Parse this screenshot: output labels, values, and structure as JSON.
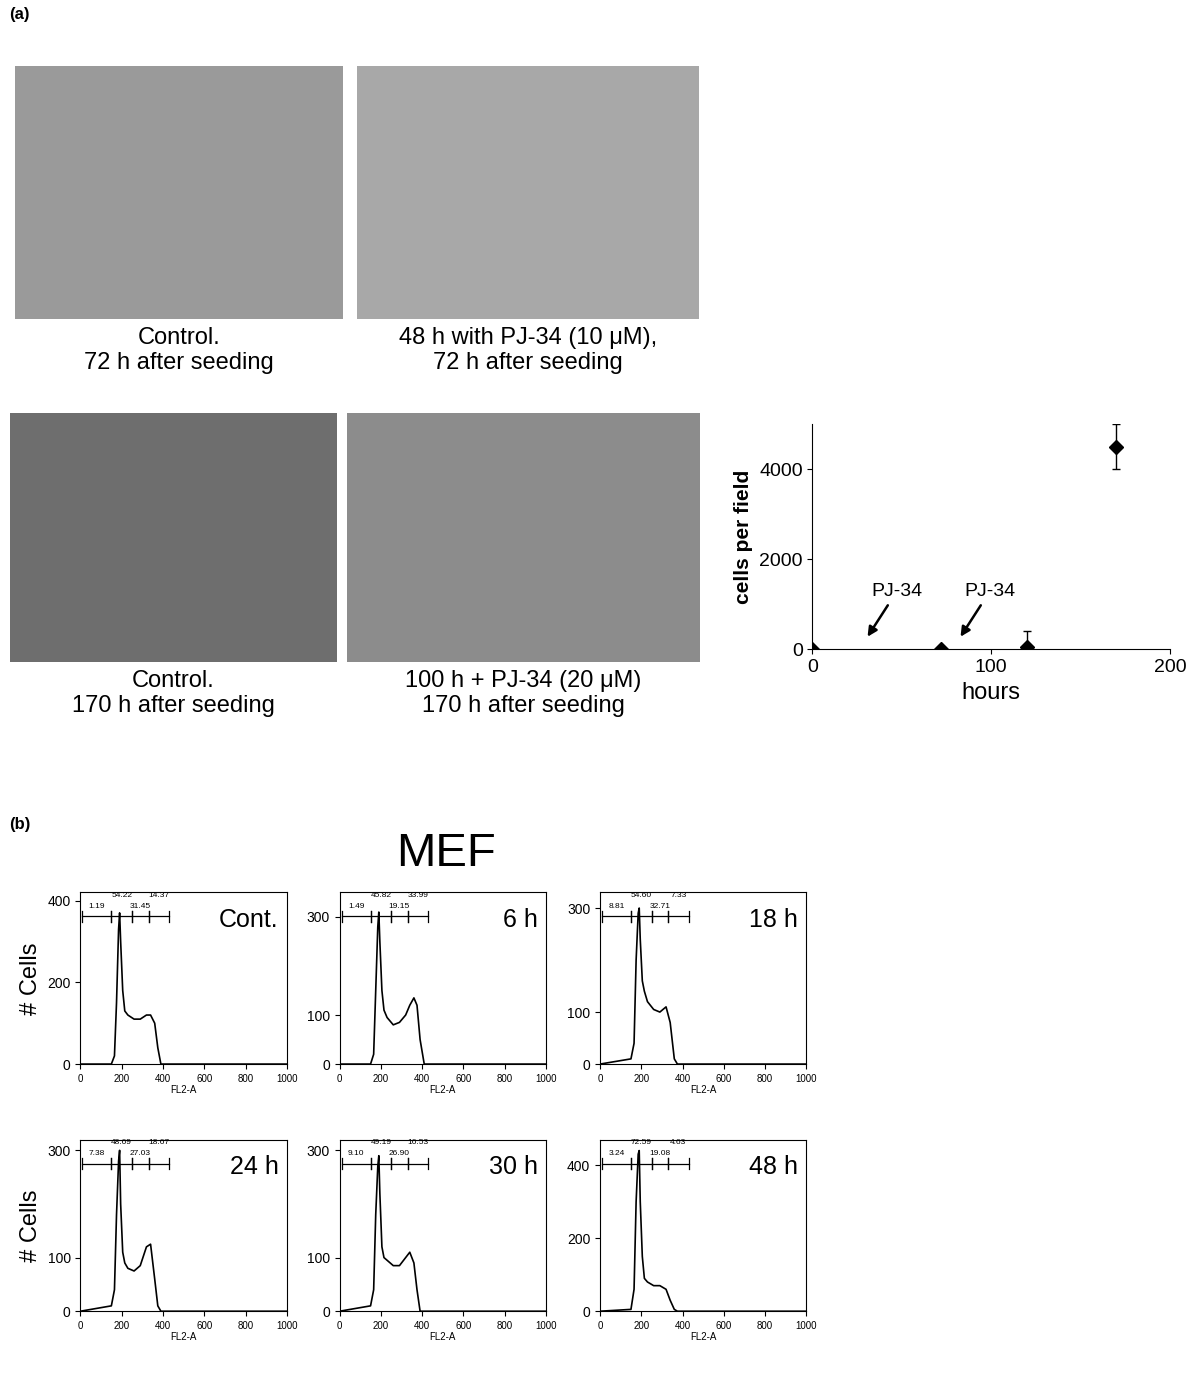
{
  "panel_labels": [
    "(a)",
    "(b)"
  ],
  "images": [
    {
      "caption": "Control.\n72 h after seeding"
    },
    {
      "caption": "48 h with PJ-34 (10 μM),\n72 h after seeding"
    },
    {
      "caption": "Control.\n170 h after seeding"
    },
    {
      "caption": "100 h + PJ-34 (20 μM)\n170 h after seeding"
    }
  ],
  "panel_b_title": "MEF",
  "chart_data": [
    {
      "type": "scatter",
      "x": [
        0,
        72,
        120,
        170
      ],
      "values": [
        0,
        0,
        50,
        4500
      ],
      "errors": [
        0,
        0,
        350,
        500
      ],
      "color": "black",
      "marker": "D",
      "xlim": [
        0,
        200
      ],
      "xticks": [
        0,
        100,
        200
      ],
      "ylim": [
        0,
        5000
      ],
      "yticks": [
        0,
        2000,
        4000
      ],
      "x_label": "hours",
      "y_label": "cells per field",
      "annotations": [
        {
          "text": "PJ-34",
          "x": 30,
          "y": 230
        },
        {
          "text": "PJ-34",
          "x": 82,
          "y": 230
        }
      ]
    },
    {
      "type": "line",
      "title": "Cont.",
      "color": "black",
      "x": [
        0,
        150,
        165,
        175,
        185,
        190,
        195,
        205,
        215,
        230,
        260,
        290,
        320,
        340,
        360,
        375,
        390,
        410,
        1000
      ],
      "values": [
        0,
        0,
        20,
        150,
        330,
        370,
        300,
        180,
        130,
        120,
        110,
        110,
        120,
        120,
        100,
        40,
        0,
        0,
        0
      ],
      "xlim": [
        0,
        1000
      ],
      "xticks": [
        0,
        200,
        400,
        600,
        800,
        1000
      ],
      "ylim": [
        0,
        420
      ],
      "yticks": [
        0,
        200,
        400
      ],
      "x_label": "FL2-A",
      "y_label": "# Cells",
      "gates": [
        {
          "range": [
            10,
            150
          ],
          "value": 1.19,
          "label": "1.19"
        },
        {
          "range": [
            150,
            250
          ],
          "value": 54.22,
          "label": "54.22"
        },
        {
          "range": [
            250,
            330
          ],
          "value": 31.45,
          "label": "31.45"
        },
        {
          "range": [
            330,
            430
          ],
          "value": 14.37,
          "label": "14.37"
        }
      ]
    },
    {
      "type": "line",
      "title": "6 h",
      "color": "black",
      "x": [
        0,
        150,
        165,
        175,
        185,
        190,
        195,
        205,
        215,
        230,
        260,
        290,
        320,
        340,
        360,
        375,
        390,
        410,
        1000
      ],
      "values": [
        0,
        0,
        20,
        150,
        280,
        310,
        250,
        150,
        110,
        95,
        80,
        85,
        100,
        120,
        135,
        120,
        50,
        0,
        0
      ],
      "xlim": [
        0,
        1000
      ],
      "xticks": [
        0,
        200,
        400,
        600,
        800,
        1000
      ],
      "ylim": [
        0,
        350
      ],
      "yticks": [
        0,
        100,
        300
      ],
      "x_label": "FL2-A",
      "gates": [
        {
          "range": [
            10,
            150
          ],
          "value": 1.49,
          "label": "1.49"
        },
        {
          "range": [
            150,
            250
          ],
          "value": 45.82,
          "label": "45.82"
        },
        {
          "range": [
            250,
            330
          ],
          "value": 19.15,
          "label": "19.15"
        },
        {
          "range": [
            330,
            430
          ],
          "value": 33.99,
          "label": "33.99"
        }
      ]
    },
    {
      "type": "line",
      "title": "18 h",
      "color": "black",
      "x": [
        0,
        150,
        165,
        175,
        185,
        190,
        195,
        205,
        215,
        230,
        260,
        290,
        320,
        340,
        360,
        375,
        390,
        410,
        1000
      ],
      "values": [
        0,
        10,
        40,
        200,
        290,
        300,
        240,
        160,
        140,
        120,
        105,
        100,
        110,
        80,
        10,
        0,
        0,
        0,
        0
      ],
      "xlim": [
        0,
        1000
      ],
      "xticks": [
        0,
        200,
        400,
        600,
        800,
        1000
      ],
      "ylim": [
        0,
        330
      ],
      "yticks": [
        0,
        100,
        300
      ],
      "x_label": "FL2-A",
      "gates": [
        {
          "range": [
            10,
            150
          ],
          "value": 8.81,
          "label": "8.81"
        },
        {
          "range": [
            150,
            250
          ],
          "value": 54.6,
          "label": "54.60"
        },
        {
          "range": [
            250,
            330
          ],
          "value": 32.71,
          "label": "32.71"
        },
        {
          "range": [
            330,
            430
          ],
          "value": 7.33,
          "label": "7.33"
        }
      ]
    },
    {
      "type": "line",
      "title": "24 h",
      "color": "black",
      "x": [
        0,
        150,
        165,
        175,
        185,
        190,
        195,
        205,
        215,
        230,
        260,
        290,
        320,
        340,
        360,
        375,
        390,
        410,
        1000
      ],
      "values": [
        0,
        10,
        40,
        180,
        280,
        300,
        200,
        110,
        90,
        80,
        75,
        85,
        120,
        125,
        60,
        10,
        0,
        0,
        0
      ],
      "xlim": [
        0,
        1000
      ],
      "xticks": [
        0,
        200,
        400,
        600,
        800,
        1000
      ],
      "ylim": [
        0,
        320
      ],
      "yticks": [
        0,
        100,
        300
      ],
      "x_label": "FL2-A",
      "y_label": "# Cells",
      "gates": [
        {
          "range": [
            10,
            150
          ],
          "value": 7.38,
          "label": "7.38"
        },
        {
          "range": [
            150,
            250
          ],
          "value": 48.69,
          "label": "48.69"
        },
        {
          "range": [
            250,
            330
          ],
          "value": 27.03,
          "label": "27.03"
        },
        {
          "range": [
            330,
            430
          ],
          "value": 18.67,
          "label": "18.67"
        }
      ]
    },
    {
      "type": "line",
      "title": "30 h",
      "color": "black",
      "x": [
        0,
        150,
        165,
        175,
        185,
        190,
        195,
        205,
        215,
        230,
        260,
        290,
        320,
        340,
        360,
        375,
        390,
        410,
        1000
      ],
      "values": [
        0,
        10,
        40,
        180,
        270,
        290,
        220,
        120,
        100,
        95,
        85,
        85,
        100,
        110,
        90,
        40,
        0,
        0,
        0
      ],
      "xlim": [
        0,
        1000
      ],
      "xticks": [
        0,
        200,
        400,
        600,
        800,
        1000
      ],
      "ylim": [
        0,
        320
      ],
      "yticks": [
        0,
        100,
        300
      ],
      "x_label": "FL2-A",
      "gates": [
        {
          "range": [
            10,
            150
          ],
          "value": 9.1,
          "label": "9.10"
        },
        {
          "range": [
            150,
            250
          ],
          "value": 49.19,
          "label": "49.19"
        },
        {
          "range": [
            250,
            330
          ],
          "value": 26.9,
          "label": "26.90"
        },
        {
          "range": [
            330,
            430
          ],
          "value": 16.53,
          "label": "16.53"
        }
      ]
    },
    {
      "type": "line",
      "title": "48 h",
      "color": "black",
      "x": [
        0,
        150,
        165,
        175,
        185,
        190,
        195,
        205,
        215,
        230,
        260,
        290,
        320,
        340,
        360,
        375,
        390,
        410,
        1000
      ],
      "values": [
        0,
        5,
        60,
        300,
        430,
        440,
        300,
        150,
        90,
        80,
        70,
        70,
        60,
        30,
        5,
        0,
        0,
        0,
        0
      ],
      "xlim": [
        0,
        1000
      ],
      "xticks": [
        0,
        200,
        400,
        600,
        800,
        1000
      ],
      "ylim": [
        0,
        470
      ],
      "yticks": [
        0,
        200,
        400
      ],
      "x_label": "FL2-A",
      "gates": [
        {
          "range": [
            10,
            150
          ],
          "value": 3.24,
          "label": "3.24"
        },
        {
          "range": [
            150,
            250
          ],
          "value": 72.59,
          "label": "72.59"
        },
        {
          "range": [
            250,
            330
          ],
          "value": 19.08,
          "label": "19.08"
        },
        {
          "range": [
            330,
            430
          ],
          "value": 4.63,
          "label": "4.63"
        }
      ]
    }
  ]
}
